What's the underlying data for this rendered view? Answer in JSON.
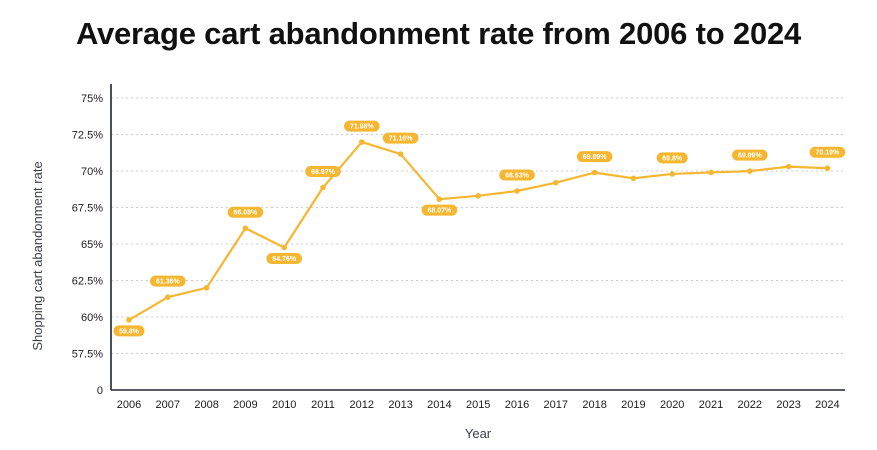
{
  "chart_data": {
    "type": "line",
    "title": "Average cart abandonment rate from 2006 to 2024",
    "xlabel": "Year",
    "ylabel": "Shopping cart abandonment rate",
    "y_ticks": [
      "0",
      "57.5%",
      "60%",
      "62.5%",
      "65%",
      "67.5%",
      "70%",
      "72.5%",
      "75%"
    ],
    "ylim": [
      57.5,
      75
    ],
    "y_axis_break": "0 shown at bottom of axis, scale starts at 57.5%",
    "grid": "horizontal dotted",
    "line_color": "#F5B731",
    "categories": [
      "2006",
      "2007",
      "2008",
      "2009",
      "2010",
      "2011",
      "2012",
      "2013",
      "2014",
      "2015",
      "2016",
      "2017",
      "2018",
      "2019",
      "2020",
      "2021",
      "2022",
      "2023",
      "2024"
    ],
    "series": [
      {
        "values": [
          59.8,
          61.36,
          62.0,
          66.08,
          64.76,
          68.87,
          71.98,
          71.16,
          68.07,
          68.3,
          68.63,
          69.2,
          69.89,
          69.5,
          69.8,
          69.9,
          69.99,
          70.3,
          70.19
        ]
      }
    ],
    "data_labels": [
      {
        "year": "2006",
        "text": "59.8%",
        "position": "below"
      },
      {
        "year": "2007",
        "text": "61.36%",
        "position": "above"
      },
      {
        "year": "2009",
        "text": "66.08%",
        "position": "above"
      },
      {
        "year": "2010",
        "text": "64.76%",
        "position": "below"
      },
      {
        "year": "2011",
        "text": "68.87%",
        "position": "above"
      },
      {
        "year": "2012",
        "text": "71.98%",
        "position": "above"
      },
      {
        "year": "2013",
        "text": "71.16%",
        "position": "above"
      },
      {
        "year": "2014",
        "text": "68.07%",
        "position": "below"
      },
      {
        "year": "2016",
        "text": "68.63%",
        "position": "above"
      },
      {
        "year": "2018",
        "text": "69.89%",
        "position": "above"
      },
      {
        "year": "2020",
        "text": "69.8%",
        "position": "above"
      },
      {
        "year": "2022",
        "text": "69.99%",
        "position": "above"
      },
      {
        "year": "2024",
        "text": "70.19%",
        "position": "above"
      }
    ]
  }
}
